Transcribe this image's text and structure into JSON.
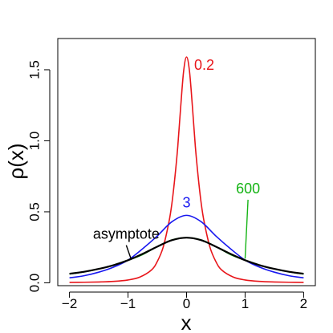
{
  "chart_data": {
    "type": "line",
    "title": "",
    "xlabel": "x",
    "ylabel": "ρ(x)",
    "xlim": [
      -2.2,
      2.2
    ],
    "ylim": [
      -0.02,
      1.72
    ],
    "x_ticks": [
      -2,
      -1,
      0,
      1,
      2
    ],
    "x_tick_labels": [
      "−2",
      "−1",
      "0",
      "1",
      "2"
    ],
    "y_ticks": [
      0.0,
      0.5,
      1.0,
      1.5
    ],
    "y_tick_labels": [
      "0.0",
      "0.5",
      "1.0",
      "1.5"
    ],
    "grid": false,
    "legend": "none",
    "series": [
      {
        "name": "0.2",
        "color": "#e8161b",
        "x": [
          -2.0,
          -1.75,
          -1.5,
          -1.25,
          -1.0,
          -0.8,
          -0.6,
          -0.5,
          -0.4,
          -0.3,
          -0.25,
          -0.2,
          -0.15,
          -0.1,
          -0.05,
          0.0,
          0.05,
          0.1,
          0.15,
          0.2,
          0.25,
          0.3,
          0.4,
          0.5,
          0.6,
          0.8,
          1.0,
          1.25,
          1.5,
          1.75,
          2.0
        ],
        "y": [
          0.003,
          0.004,
          0.006,
          0.01,
          0.02,
          0.04,
          0.09,
          0.15,
          0.25,
          0.43,
          0.56,
          0.74,
          0.96,
          1.24,
          1.49,
          1.59,
          1.49,
          1.24,
          0.96,
          0.74,
          0.56,
          0.43,
          0.25,
          0.15,
          0.09,
          0.04,
          0.02,
          0.01,
          0.006,
          0.004,
          0.003
        ]
      },
      {
        "name": "3",
        "color": "#1818f0",
        "x": [
          -2.0,
          -1.75,
          -1.5,
          -1.25,
          -1.0,
          -0.75,
          -0.5,
          -0.25,
          0.0,
          0.25,
          0.5,
          0.75,
          1.0,
          1.25,
          1.5,
          1.75,
          2.0
        ],
        "y": [
          0.035,
          0.05,
          0.075,
          0.11,
          0.16,
          0.24,
          0.33,
          0.43,
          0.475,
          0.43,
          0.33,
          0.24,
          0.16,
          0.11,
          0.075,
          0.05,
          0.035
        ]
      },
      {
        "name": "600",
        "color": "#16b416",
        "x": [
          -2.0,
          -1.75,
          -1.5,
          -1.25,
          -1.0,
          -0.75,
          -0.5,
          -0.25,
          0.0,
          0.25,
          0.5,
          0.75,
          1.0,
          1.25,
          1.5,
          1.75,
          2.0
        ],
        "y": [
          0.062,
          0.077,
          0.098,
          0.125,
          0.159,
          0.199,
          0.255,
          0.302,
          0.318,
          0.302,
          0.255,
          0.199,
          0.159,
          0.125,
          0.098,
          0.077,
          0.062
        ]
      },
      {
        "name": "asymptote",
        "color": "#000000",
        "x": [
          -2.0,
          -1.75,
          -1.5,
          -1.25,
          -1.0,
          -0.75,
          -0.5,
          -0.25,
          0.0,
          0.25,
          0.5,
          0.75,
          1.0,
          1.25,
          1.5,
          1.75,
          2.0
        ],
        "y": [
          0.064,
          0.078,
          0.098,
          0.124,
          0.159,
          0.204,
          0.255,
          0.3,
          0.318,
          0.3,
          0.255,
          0.204,
          0.159,
          0.124,
          0.098,
          0.078,
          0.064
        ]
      }
    ],
    "annotations": [
      {
        "text": "0.2",
        "color": "#e8161b",
        "x": 0.13,
        "y": 1.5
      },
      {
        "text": "3",
        "color": "#1818f0",
        "x": 0.0,
        "y": 0.53
      },
      {
        "text": "600",
        "color": "#16b416",
        "x": 1.05,
        "y": 0.63,
        "pointer_to": {
          "x": 1.0,
          "y": 0.17
        }
      },
      {
        "text": "asymptote",
        "color": "#000000",
        "x": -1.03,
        "y": 0.31,
        "pointer_to": {
          "x": -0.95,
          "y": 0.17
        }
      }
    ]
  }
}
